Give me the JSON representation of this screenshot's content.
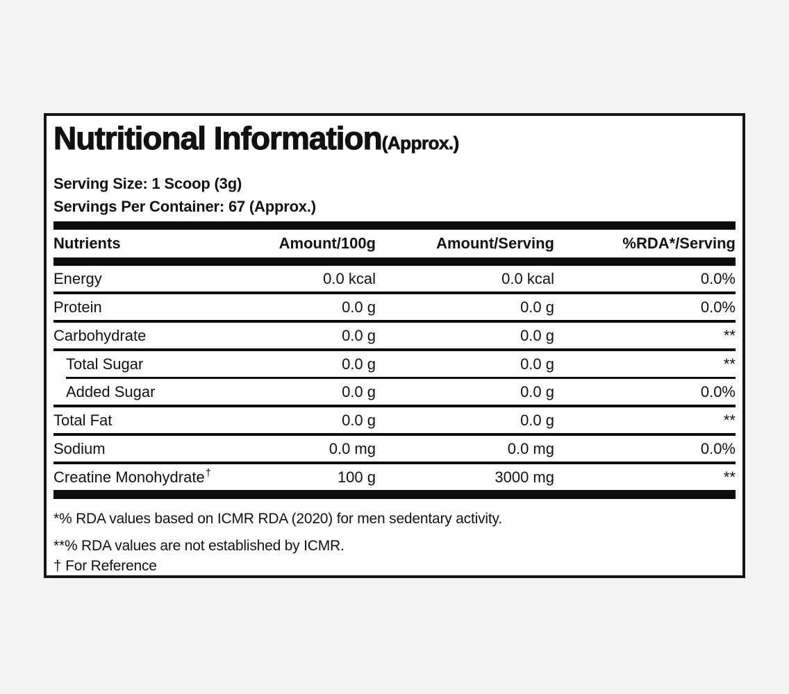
{
  "page": {
    "background_color": "#f4f4f5",
    "label_background": "#ffffff",
    "ink_color": "#111111"
  },
  "header": {
    "title": "Nutritional Information",
    "title_suffix": "(Approx.)",
    "serving_size": "Serving Size: 1 Scoop (3g)",
    "servings_per_container": "Servings Per Container: 67 (Approx.)"
  },
  "table": {
    "columns": [
      "Nutrients",
      "Amount/100g",
      "Amount/Serving",
      "%RDA*/Serving"
    ],
    "rows": [
      {
        "nutrient": "Energy",
        "sup": "",
        "per_100g": "0.0 kcal",
        "per_serving": "0.0 kcal",
        "rda_per_serving": "0.0%",
        "indent": false
      },
      {
        "nutrient": "Protein",
        "sup": "",
        "per_100g": "0.0 g",
        "per_serving": "0.0 g",
        "rda_per_serving": "0.0%",
        "indent": false
      },
      {
        "nutrient": "Carbohydrate",
        "sup": "",
        "per_100g": "0.0 g",
        "per_serving": "0.0 g",
        "rda_per_serving": "**",
        "indent": false
      },
      {
        "nutrient": "Total Sugar",
        "sup": "",
        "per_100g": "0.0 g",
        "per_serving": "0.0 g",
        "rda_per_serving": "**",
        "indent": true
      },
      {
        "nutrient": "Added Sugar",
        "sup": "",
        "per_100g": "0.0 g",
        "per_serving": "0.0 g",
        "rda_per_serving": "0.0%",
        "indent": true
      },
      {
        "nutrient": "Total Fat",
        "sup": "",
        "per_100g": "0.0 g",
        "per_serving": "0.0 g",
        "rda_per_serving": "**",
        "indent": false
      },
      {
        "nutrient": "Sodium",
        "sup": "",
        "per_100g": "0.0 mg",
        "per_serving": "0.0 mg",
        "rda_per_serving": "0.0%",
        "indent": false
      },
      {
        "nutrient": "Creatine Monohydrate",
        "sup": "†",
        "per_100g": "100 g",
        "per_serving": "3000 mg",
        "rda_per_serving": "**",
        "indent": false
      }
    ]
  },
  "footnotes": [
    "*% RDA values based on ICMR RDA (2020) for men sedentary activity.",
    "**% RDA values are not established by ICMR.",
    "† For Reference"
  ]
}
